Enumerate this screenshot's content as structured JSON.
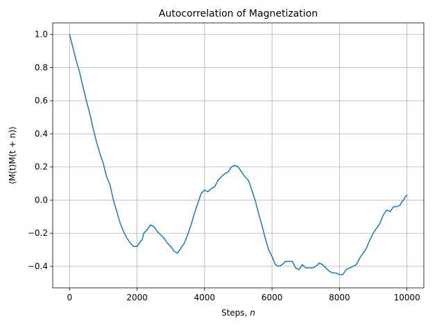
{
  "chart_data": {
    "type": "line",
    "title": "Autocorrelation of Magnetization",
    "xlabel_text": "Steps, ",
    "xlabel_var": "n",
    "ylabel": "⟨M(t)M(t + n)⟩",
    "xlim": [
      -500,
      10500
    ],
    "ylim": [
      -0.53,
      1.07
    ],
    "xticks": [
      0,
      2000,
      4000,
      6000,
      8000,
      10000
    ],
    "xtick_labels": [
      "0",
      "2000",
      "4000",
      "6000",
      "8000",
      "10000"
    ],
    "yticks": [
      -0.4,
      -0.2,
      0.0,
      0.2,
      0.4,
      0.6,
      0.8,
      1.0
    ],
    "ytick_labels": [
      "−0.4",
      "−0.2",
      "0.0",
      "0.2",
      "0.4",
      "0.6",
      "0.8",
      "1.0"
    ],
    "grid": true,
    "series": [
      {
        "color": "#1f77b4",
        "x": [
          0,
          100,
          200,
          300,
          400,
          500,
          600,
          700,
          800,
          900,
          1000,
          1100,
          1200,
          1300,
          1400,
          1500,
          1600,
          1700,
          1800,
          1900,
          2000,
          2100,
          2150,
          2200,
          2300,
          2400,
          2500,
          2600,
          2700,
          2800,
          2900,
          3000,
          3100,
          3200,
          3300,
          3400,
          3500,
          3600,
          3700,
          3800,
          3900,
          4000,
          4100,
          4200,
          4300,
          4400,
          4500,
          4600,
          4700,
          4800,
          4900,
          5000,
          5100,
          5200,
          5300,
          5400,
          5500,
          5600,
          5700,
          5800,
          5900,
          6000,
          6100,
          6200,
          6300,
          6400,
          6500,
          6600,
          6700,
          6800,
          6900,
          7000,
          7100,
          7200,
          7300,
          7400,
          7500,
          7600,
          7700,
          7800,
          7900,
          8000,
          8100,
          8200,
          8300,
          8400,
          8500,
          8600,
          8700,
          8800,
          8900,
          9000,
          9100,
          9200,
          9300,
          9400,
          9500,
          9600,
          9700,
          9800,
          9850,
          9900,
          9950,
          10000
        ],
        "y": [
          1.0,
          0.92,
          0.84,
          0.77,
          0.68,
          0.6,
          0.52,
          0.43,
          0.35,
          0.28,
          0.22,
          0.14,
          0.09,
          0.0,
          -0.07,
          -0.14,
          -0.19,
          -0.23,
          -0.26,
          -0.28,
          -0.28,
          -0.25,
          -0.24,
          -0.2,
          -0.18,
          -0.15,
          -0.16,
          -0.19,
          -0.21,
          -0.23,
          -0.26,
          -0.28,
          -0.31,
          -0.32,
          -0.29,
          -0.26,
          -0.21,
          -0.15,
          -0.08,
          -0.02,
          0.04,
          0.06,
          0.05,
          0.07,
          0.08,
          0.12,
          0.14,
          0.16,
          0.17,
          0.2,
          0.21,
          0.2,
          0.17,
          0.14,
          0.12,
          0.06,
          0.0,
          -0.08,
          -0.15,
          -0.23,
          -0.3,
          -0.34,
          -0.39,
          -0.4,
          -0.39,
          -0.37,
          -0.37,
          -0.37,
          -0.41,
          -0.42,
          -0.39,
          -0.41,
          -0.41,
          -0.41,
          -0.4,
          -0.38,
          -0.39,
          -0.41,
          -0.43,
          -0.44,
          -0.44,
          -0.45,
          -0.45,
          -0.42,
          -0.41,
          -0.4,
          -0.39,
          -0.35,
          -0.32,
          -0.29,
          -0.24,
          -0.2,
          -0.17,
          -0.14,
          -0.09,
          -0.06,
          -0.07,
          -0.04,
          -0.04,
          -0.03,
          -0.01,
          0.0,
          0.02,
          0.03
        ]
      }
    ]
  }
}
